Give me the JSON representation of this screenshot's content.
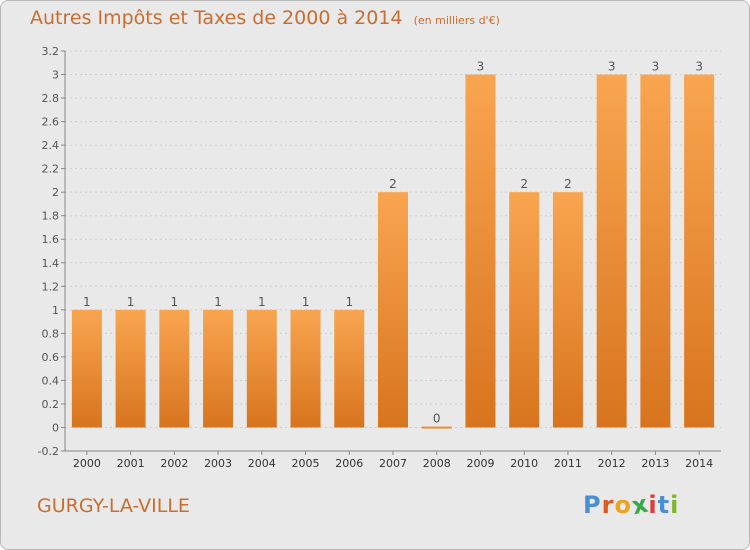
{
  "header": {
    "title": "Autres Impôts et Taxes de 2000 à 2014",
    "unit": "(en milliers d'€)"
  },
  "footer": {
    "commune": "GURGY-LA-VILLE",
    "logo": [
      "P",
      "r",
      "o",
      "x",
      "i",
      "t",
      "i"
    ]
  },
  "colors": {
    "bar_light": "#f9a550",
    "bar_dark": "#d8741e",
    "text_accent": "#cc6d2d",
    "logo": [
      "#4a8fd4",
      "#e05a1c",
      "#f0a21e",
      "#3aa848",
      "#e03a3a",
      "#4a8fd4",
      "#7ab928"
    ]
  },
  "chart_data": {
    "type": "bar",
    "categories": [
      "2000",
      "2001",
      "2002",
      "2003",
      "2004",
      "2005",
      "2006",
      "2007",
      "2008",
      "2009",
      "2010",
      "2011",
      "2012",
      "2013",
      "2014"
    ],
    "values": [
      1,
      1,
      1,
      1,
      1,
      1,
      1,
      2,
      0,
      3,
      2,
      2,
      3,
      3,
      3
    ],
    "data_labels": [
      "1",
      "1",
      "1",
      "1",
      "1",
      "1",
      "1",
      "2",
      "0",
      "3",
      "2",
      "2",
      "3",
      "3",
      "3"
    ],
    "ylim": [
      -0.2,
      3.2
    ],
    "yticks": [
      "-0.2",
      "0",
      "0.2",
      "0.4",
      "0.6",
      "0.8",
      "1",
      "1.2",
      "1.4",
      "1.6",
      "1.8",
      "2",
      "2.2",
      "2.4",
      "2.6",
      "2.8",
      "3",
      "3.2"
    ],
    "ytick_values": [
      -0.2,
      0,
      0.2,
      0.4,
      0.6,
      0.8,
      1,
      1.2,
      1.4,
      1.6,
      1.8,
      2,
      2.2,
      2.4,
      2.6,
      2.8,
      3,
      3.2
    ],
    "grid": true
  }
}
